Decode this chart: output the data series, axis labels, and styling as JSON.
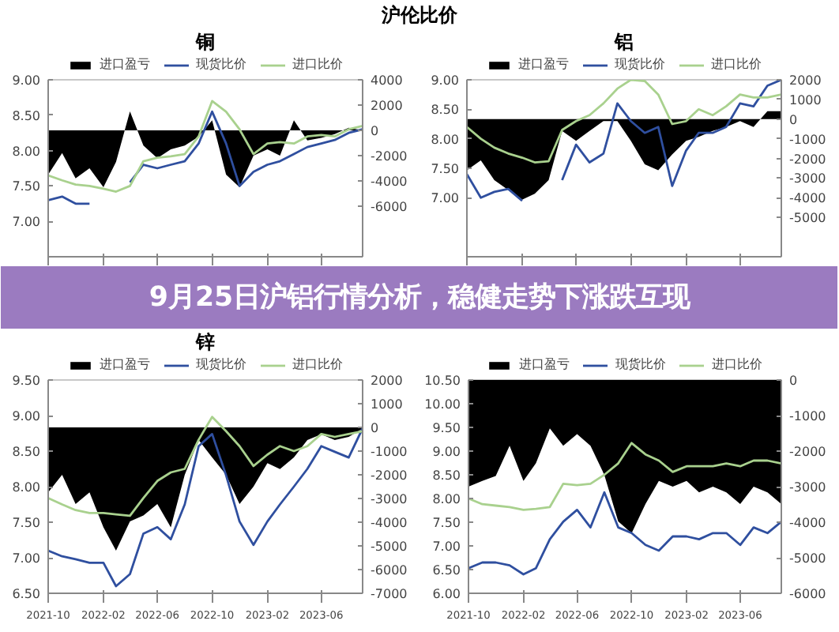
{
  "chart_data": [
    {
      "type": "line",
      "title": "铜",
      "annotations": [
        "沪伦比价",
        "9月25日沪铝行情分析，稳健走势下涨跌互现"
      ],
      "legend": "top",
      "tick_labels": "y",
      "x": [
        "2021-10",
        "2021-11",
        "2021-12",
        "2022-01",
        "2022-02",
        "2022-03",
        "2022-04",
        "2022-05",
        "2022-06",
        "2022-07",
        "2022-08",
        "2022-09",
        "2022-10",
        "2022-11",
        "2022-12",
        "2023-01",
        "2023-02",
        "2023-03",
        "2023-04",
        "2023-05",
        "2023-06",
        "2023-07",
        "2023-08",
        "2023-09"
      ],
      "xlim": [
        "2021-10",
        "2023-09"
      ],
      "xticks": [
        "2021-10",
        "2022-02",
        "2022-06",
        "2022-10",
        "2023-02",
        "2023-06"
      ],
      "ylim": [
        6.5,
        9.0
      ],
      "yticks": [
        {
          "value": 7.0,
          "label": "7.00"
        },
        {
          "value": 7.5,
          "label": "7.50"
        },
        {
          "value": 8.0,
          "label": "8.00"
        },
        {
          "value": 8.5,
          "label": "8.50"
        },
        {
          "value": 9.0,
          "label": "9.00"
        }
      ],
      "y2lim": [
        -10000,
        4000
      ],
      "y2ticks": [
        -6000,
        -4000,
        -2000,
        0,
        2000,
        4000
      ],
      "series": [
        {
          "name": "进口盈亏",
          "type": "area",
          "axis": "y2",
          "color": "#000000",
          "values": [
            -3500,
            -1800,
            -3800,
            -3000,
            -4500,
            -2500,
            1500,
            -1200,
            -2200,
            -1500,
            -1200,
            -500,
            800,
            -3500,
            -4500,
            -2000,
            -1500,
            -2000,
            800,
            -800,
            -600,
            -300,
            200,
            0
          ]
        },
        {
          "name": "现货比价",
          "color": "#2f4f9f",
          "values": [
            7.3,
            7.35,
            7.25,
            7.25,
            null,
            null,
            7.55,
            7.8,
            7.75,
            7.8,
            7.85,
            8.1,
            8.55,
            8.1,
            7.5,
            7.7,
            7.8,
            7.85,
            7.95,
            8.05,
            8.1,
            8.15,
            8.25,
            8.3
          ]
        },
        {
          "name": "进口比价",
          "color": "#a9d18e",
          "values": [
            7.65,
            7.58,
            7.52,
            7.5,
            7.46,
            7.42,
            7.5,
            7.85,
            7.9,
            7.92,
            7.95,
            8.2,
            8.7,
            8.55,
            8.3,
            7.95,
            8.1,
            8.12,
            8.1,
            8.2,
            8.22,
            8.2,
            8.3,
            8.35
          ]
        }
      ]
    },
    {
      "type": "line",
      "title": "铝",
      "legend": "top",
      "tick_labels": "y",
      "x": [
        "2021-10",
        "2021-11",
        "2021-12",
        "2022-01",
        "2022-02",
        "2022-03",
        "2022-04",
        "2022-05",
        "2022-06",
        "2022-07",
        "2022-08",
        "2022-09",
        "2022-10",
        "2022-11",
        "2022-12",
        "2023-01",
        "2023-02",
        "2023-03",
        "2023-04",
        "2023-05",
        "2023-06",
        "2023-07",
        "2023-08",
        "2023-09"
      ],
      "xlim": [
        "2021-10",
        "2023-09"
      ],
      "xticks": [
        "2021-10",
        "2022-02",
        "2022-06",
        "2022-10",
        "2023-02",
        "2023-06"
      ],
      "ylim": [
        6.0,
        9.0
      ],
      "yticks": [
        {
          "value": 7.0,
          "label": "7.00"
        },
        {
          "value": 7.5,
          "label": "7.50"
        },
        {
          "value": 8.0,
          "label": "8.00"
        },
        {
          "value": 8.5,
          "label": "8.50"
        },
        {
          "value": 9.0,
          "label": "9.00"
        }
      ],
      "y2lim": [
        -7000,
        2000
      ],
      "y2ticks": [
        -5000,
        -4000,
        -3000,
        -2000,
        -1000,
        0,
        1000,
        2000
      ],
      "series": [
        {
          "name": "进口盈亏",
          "type": "area",
          "axis": "y2",
          "color": "#000000",
          "values": [
            -2600,
            -2100,
            -3100,
            -3600,
            -4100,
            -3800,
            -3100,
            -600,
            -1100,
            -600,
            -100,
            -100,
            -1100,
            -2300,
            -2600,
            -1800,
            -1100,
            -900,
            -600,
            -400,
            -100,
            -400,
            400,
            400
          ]
        },
        {
          "name": "现货比价",
          "color": "#2f4f9f",
          "values": [
            7.4,
            7.0,
            7.1,
            7.15,
            6.95,
            null,
            null,
            7.3,
            7.9,
            7.6,
            7.75,
            8.6,
            8.3,
            8.1,
            8.2,
            7.2,
            7.8,
            8.1,
            8.1,
            8.2,
            8.6,
            8.55,
            8.9,
            9.0
          ]
        },
        {
          "name": "进口比价",
          "color": "#a9d18e",
          "values": [
            8.2,
            8.0,
            7.85,
            7.75,
            7.68,
            7.6,
            7.62,
            8.15,
            8.3,
            8.4,
            8.6,
            8.85,
            9.0,
            8.98,
            8.75,
            8.25,
            8.3,
            8.5,
            8.4,
            8.55,
            8.75,
            8.7,
            8.7,
            8.75
          ]
        }
      ]
    },
    {
      "type": "line",
      "title": "锌",
      "legend": "top",
      "x": [
        "2021-10",
        "2021-11",
        "2021-12",
        "2022-01",
        "2022-02",
        "2022-03",
        "2022-04",
        "2022-05",
        "2022-06",
        "2022-07",
        "2022-08",
        "2022-09",
        "2022-10",
        "2022-11",
        "2022-12",
        "2023-01",
        "2023-02",
        "2023-03",
        "2023-04",
        "2023-05",
        "2023-06",
        "2023-07",
        "2023-08",
        "2023-09"
      ],
      "xlim": [
        "2021-10",
        "2023-09"
      ],
      "xticks": [
        "2021-10",
        "2022-02",
        "2022-06",
        "2022-10",
        "2023-02",
        "2023-06"
      ],
      "ylim": [
        6.5,
        9.5
      ],
      "yticks": [
        {
          "value": 6.5,
          "label": "6.50"
        },
        {
          "value": 7.0,
          "label": "7.00"
        },
        {
          "value": 7.5,
          "label": "7.50"
        },
        {
          "value": 8.0,
          "label": "8.00"
        },
        {
          "value": 8.5,
          "label": "8.50"
        },
        {
          "value": 9.0,
          "label": "9.00"
        },
        {
          "value": 9.5,
          "label": "9.50"
        }
      ],
      "y2lim": [
        -7000,
        2000
      ],
      "y2ticks": [
        -7000,
        -6000,
        -5000,
        -4000,
        -3000,
        -2000,
        -1000,
        0,
        1000,
        2000
      ],
      "series": [
        {
          "name": "进口盈亏",
          "type": "area",
          "axis": "y2",
          "color": "#000000",
          "values": [
            -2740,
            -2000,
            -3230,
            -2740,
            -4220,
            -5200,
            -3970,
            -3720,
            -3230,
            -4220,
            -2000,
            -530,
            -1270,
            -2000,
            -3230,
            -2500,
            -1510,
            -1760,
            -1270,
            -530,
            -290,
            -530,
            -400,
            -50
          ]
        },
        {
          "name": "现货比价",
          "color": "#2f4f9f",
          "values": [
            7.1,
            7.02,
            6.98,
            6.93,
            6.93,
            6.6,
            6.77,
            7.34,
            7.43,
            7.26,
            7.75,
            8.57,
            8.74,
            8.16,
            7.51,
            7.18,
            7.51,
            7.75,
            8.0,
            8.25,
            8.57,
            8.49,
            8.41,
            8.82
          ]
        },
        {
          "name": "进口比价",
          "color": "#a9d18e",
          "values": [
            7.84,
            7.75,
            7.67,
            7.63,
            7.63,
            7.61,
            7.59,
            7.84,
            8.08,
            8.2,
            8.25,
            8.66,
            8.98,
            8.78,
            8.57,
            8.29,
            8.45,
            8.57,
            8.5,
            8.57,
            8.74,
            8.7,
            8.74,
            8.78
          ]
        }
      ]
    },
    {
      "type": "line",
      "legend": "top",
      "x": [
        "2021-10",
        "2021-11",
        "2021-12",
        "2022-01",
        "2022-02",
        "2022-03",
        "2022-04",
        "2022-05",
        "2022-06",
        "2022-07",
        "2022-08",
        "2022-09",
        "2022-10",
        "2022-11",
        "2022-12",
        "2023-01",
        "2023-02",
        "2023-03",
        "2023-04",
        "2023-05",
        "2023-06",
        "2023-07",
        "2023-08",
        "2023-09"
      ],
      "xlim": [
        "2021-10",
        "2023-09"
      ],
      "xticks": [
        "2021-10",
        "2022-02",
        "2022-06",
        "2022-10",
        "2023-02",
        "2023-06"
      ],
      "ylim": [
        6.0,
        10.5
      ],
      "yticks": [
        {
          "value": 6.0,
          "label": "6.00"
        },
        {
          "value": 6.5,
          "label": "6.50"
        },
        {
          "value": 7.0,
          "label": "7.00"
        },
        {
          "value": 7.5,
          "label": "7.50"
        },
        {
          "value": 8.0,
          "label": "8.00"
        },
        {
          "value": 8.5,
          "label": "8.50"
        },
        {
          "value": 9.0,
          "label": "9.00"
        },
        {
          "value": 9.5,
          "label": "9.50"
        },
        {
          "value": 10.0,
          "label": "10.00"
        },
        {
          "value": 10.5,
          "label": "10.50"
        }
      ],
      "y2lim": [
        -6000,
        0
      ],
      "y2ticks": [
        -6000,
        -5000,
        -4000,
        -3000,
        -2000,
        -1000,
        0
      ],
      "series": [
        {
          "name": "进口盈亏",
          "type": "area",
          "axis": "y2",
          "color": "#000000",
          "values": [
            -3000,
            -2840,
            -2700,
            -1850,
            -2840,
            -2340,
            -1360,
            -1850,
            -1520,
            -1850,
            -2670,
            -3980,
            -4310,
            -3490,
            -2840,
            -3000,
            -2840,
            -3160,
            -3000,
            -3160,
            -3490,
            -3000,
            -3160,
            -3490
          ]
        },
        {
          "name": "现货比价",
          "color": "#2f4f9f",
          "values": [
            6.53,
            6.65,
            6.65,
            6.59,
            6.4,
            6.53,
            7.14,
            7.51,
            7.76,
            7.39,
            8.13,
            7.39,
            7.27,
            7.02,
            6.9,
            7.2,
            7.2,
            7.14,
            7.27,
            7.27,
            7.02,
            7.39,
            7.27,
            7.51
          ]
        },
        {
          "name": "进口比价",
          "color": "#a9d18e",
          "values": [
            8.0,
            7.88,
            7.85,
            7.82,
            7.76,
            7.78,
            7.82,
            8.31,
            8.28,
            8.31,
            8.5,
            8.74,
            9.17,
            8.93,
            8.8,
            8.56,
            8.68,
            8.68,
            8.68,
            8.74,
            8.68,
            8.8,
            8.8,
            8.74
          ]
        }
      ]
    }
  ]
}
